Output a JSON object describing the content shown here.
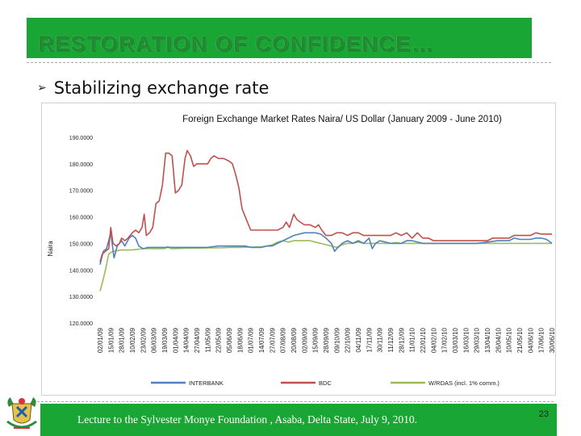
{
  "slide": {
    "title": "RESTORATION OF CONFIDENCE…",
    "bullet": "Stabilizing exchange rate",
    "footer": "Lecture to the Sylvester Monye Foundation , Asaba, Delta State, July 9, 2010.",
    "page_number": "23"
  },
  "colors": {
    "band": "#1aa635",
    "title_text": "#1f8a30",
    "interbank": "#4f81bd",
    "bdc": "#c0504d",
    "wrdas": "#9bbb59"
  },
  "chart_data": {
    "type": "line",
    "title": "Foreign Exchange Market Rates Naira/ US Dollar    (January 2009 - June 2010)",
    "ylabel": "Naira",
    "xlabel": "",
    "ylim": [
      120,
      190
    ],
    "yticks": [
      "190.0000",
      "180.0000",
      "170.0000",
      "160.0000",
      "150.0000",
      "140.0000",
      "130.0000",
      "120.0000"
    ],
    "x_tick_labels": [
      "02/01/09",
      "15/01/09",
      "28/01/09",
      "10/02/09",
      "23/02/09",
      "06/03/09",
      "19/03/09",
      "01/04/09",
      "14/04/09",
      "27/04/09",
      "11/05/09",
      "22/05/09",
      "05/06/09",
      "18/06/09",
      "01/07/09",
      "14/07/09",
      "27/07/09",
      "07/08/09",
      "20/08/09",
      "02/09/09",
      "15/09/09",
      "28/09/09",
      "09/10/09",
      "22/10/09",
      "04/11/09",
      "17/11/09",
      "30/11/09",
      "11/12/09",
      "28/12/09",
      "11/01/10",
      "22/01/10",
      "04/02/10",
      "17/02/10",
      "03/03/10",
      "16/03/10",
      "29/03/10",
      "13/04/10",
      "26/04/10",
      "10/05/10",
      "21/05/10",
      "04/06/10",
      "17/06/10",
      "30/06/10"
    ],
    "legend_position": "bottom",
    "grid": false,
    "series": [
      {
        "name": "INTERBANK",
        "color": "#4f81bd",
        "values": [
          [
            0,
            142
          ],
          [
            0.3,
            147
          ],
          [
            0.6,
            148
          ],
          [
            1,
            154
          ],
          [
            1.3,
            144.5
          ],
          [
            1.6,
            149
          ],
          [
            2,
            151
          ],
          [
            2.3,
            149
          ],
          [
            2.7,
            152
          ],
          [
            3,
            153
          ],
          [
            3.3,
            152
          ],
          [
            3.6,
            149
          ],
          [
            4,
            148
          ],
          [
            4.5,
            148.5
          ],
          [
            5,
            148.5
          ],
          [
            6,
            148.5
          ],
          [
            7,
            148.5
          ],
          [
            8,
            148.5
          ],
          [
            9,
            148.5
          ],
          [
            10,
            148.5
          ],
          [
            11,
            149
          ],
          [
            12,
            149
          ],
          [
            13,
            149
          ],
          [
            13.5,
            149
          ],
          [
            14,
            148.5
          ],
          [
            15,
            148.5
          ],
          [
            15.5,
            149
          ],
          [
            16,
            149
          ],
          [
            16.5,
            150
          ],
          [
            17,
            151
          ],
          [
            18,
            153
          ],
          [
            19,
            154
          ],
          [
            20,
            154
          ],
          [
            20.5,
            153.5
          ],
          [
            21,
            152
          ],
          [
            21.5,
            150
          ],
          [
            21.8,
            147
          ],
          [
            22,
            148
          ],
          [
            22.5,
            150
          ],
          [
            23,
            151
          ],
          [
            23.5,
            150
          ],
          [
            24,
            151
          ],
          [
            24.5,
            150
          ],
          [
            25,
            152
          ],
          [
            25.3,
            148
          ],
          [
            25.6,
            150
          ],
          [
            26,
            151
          ],
          [
            27,
            150
          ],
          [
            28,
            150
          ],
          [
            28.5,
            151
          ],
          [
            29,
            151
          ],
          [
            30,
            150
          ],
          [
            31,
            150
          ],
          [
            32,
            150
          ],
          [
            33,
            150
          ],
          [
            34,
            150
          ],
          [
            35,
            150
          ],
          [
            36,
            150.5
          ],
          [
            37,
            151
          ],
          [
            38,
            151
          ],
          [
            38.5,
            152
          ],
          [
            39,
            151.5
          ],
          [
            40,
            151.5
          ],
          [
            40.5,
            152
          ],
          [
            41,
            152
          ],
          [
            41.5,
            151.5
          ],
          [
            42,
            150
          ]
        ]
      },
      {
        "name": "BDC",
        "color": "#c0504d",
        "values": [
          [
            0,
            143
          ],
          [
            0.2,
            146
          ],
          [
            0.5,
            147
          ],
          [
            0.8,
            148
          ],
          [
            1,
            156
          ],
          [
            1.2,
            150
          ],
          [
            1.5,
            149
          ],
          [
            1.8,
            150
          ],
          [
            2,
            152
          ],
          [
            2.3,
            151
          ],
          [
            2.6,
            152
          ],
          [
            3,
            154
          ],
          [
            3.3,
            155
          ],
          [
            3.6,
            154
          ],
          [
            3.9,
            156
          ],
          [
            4.1,
            161
          ],
          [
            4.3,
            153
          ],
          [
            4.6,
            154
          ],
          [
            4.9,
            156
          ],
          [
            5.2,
            165
          ],
          [
            5.5,
            166
          ],
          [
            5.8,
            172
          ],
          [
            6.1,
            184
          ],
          [
            6.4,
            184
          ],
          [
            6.7,
            183
          ],
          [
            7,
            169
          ],
          [
            7.3,
            170
          ],
          [
            7.6,
            172
          ],
          [
            7.9,
            182
          ],
          [
            8.1,
            185
          ],
          [
            8.4,
            183
          ],
          [
            8.7,
            179
          ],
          [
            9,
            180
          ],
          [
            9.5,
            180
          ],
          [
            10,
            180
          ],
          [
            10.3,
            182
          ],
          [
            10.6,
            183
          ],
          [
            11,
            182
          ],
          [
            11.5,
            182
          ],
          [
            12,
            181
          ],
          [
            12.3,
            180
          ],
          [
            12.6,
            176
          ],
          [
            12.9,
            171
          ],
          [
            13.2,
            163
          ],
          [
            13.5,
            160
          ],
          [
            13.8,
            157
          ],
          [
            14,
            155
          ],
          [
            14.5,
            155
          ],
          [
            15,
            155
          ],
          [
            15.5,
            155
          ],
          [
            16,
            155
          ],
          [
            16.5,
            155
          ],
          [
            17,
            156
          ],
          [
            17.3,
            158
          ],
          [
            17.6,
            156
          ],
          [
            18,
            161
          ],
          [
            18.3,
            159
          ],
          [
            18.6,
            158
          ],
          [
            19,
            157
          ],
          [
            19.5,
            157
          ],
          [
            20,
            156
          ],
          [
            20.3,
            157
          ],
          [
            20.6,
            155
          ],
          [
            21,
            153
          ],
          [
            21.5,
            153
          ],
          [
            22,
            154
          ],
          [
            22.5,
            154
          ],
          [
            23,
            153
          ],
          [
            23.5,
            154
          ],
          [
            24,
            154
          ],
          [
            24.5,
            153
          ],
          [
            25,
            153
          ],
          [
            25.5,
            153
          ],
          [
            26,
            153
          ],
          [
            26.5,
            153
          ],
          [
            27,
            153
          ],
          [
            27.5,
            154
          ],
          [
            28,
            153
          ],
          [
            28.5,
            154
          ],
          [
            29,
            152
          ],
          [
            29.5,
            154
          ],
          [
            30,
            152
          ],
          [
            30.5,
            152
          ],
          [
            31,
            151
          ],
          [
            32,
            151
          ],
          [
            33,
            151
          ],
          [
            34,
            151
          ],
          [
            35,
            151
          ],
          [
            36,
            151
          ],
          [
            36.5,
            152
          ],
          [
            37,
            152
          ],
          [
            38,
            152
          ],
          [
            38.5,
            153
          ],
          [
            39,
            153
          ],
          [
            40,
            153
          ],
          [
            40.5,
            154
          ],
          [
            41,
            153.5
          ],
          [
            42,
            153.5
          ]
        ]
      },
      {
        "name": "W/RDAS (incl. 1% comm.)",
        "color": "#9bbb59",
        "values": [
          [
            0,
            132
          ],
          [
            0.2,
            135
          ],
          [
            0.5,
            140
          ],
          [
            0.8,
            146
          ],
          [
            1.2,
            147
          ],
          [
            2,
            147.5
          ],
          [
            3,
            147.5
          ],
          [
            4,
            148
          ],
          [
            5,
            148
          ],
          [
            6,
            148
          ],
          [
            6.3,
            148.8
          ],
          [
            6.6,
            148
          ],
          [
            7,
            148
          ],
          [
            8,
            148.2
          ],
          [
            9,
            148.2
          ],
          [
            10,
            148.3
          ],
          [
            11,
            148.3
          ],
          [
            12,
            148.5
          ],
          [
            13,
            148.5
          ],
          [
            14,
            148.6
          ],
          [
            15,
            148.7
          ],
          [
            15.5,
            149
          ],
          [
            16,
            149.5
          ],
          [
            16.5,
            150.5
          ],
          [
            17,
            151
          ],
          [
            17.5,
            150.5
          ],
          [
            18,
            151
          ],
          [
            18.5,
            151
          ],
          [
            19,
            151
          ],
          [
            19.5,
            151
          ],
          [
            20,
            150.5
          ],
          [
            20.5,
            150
          ],
          [
            21,
            149.5
          ],
          [
            21.5,
            149
          ],
          [
            22,
            148.5
          ],
          [
            22.5,
            149.5
          ],
          [
            23,
            150
          ],
          [
            23.5,
            150
          ],
          [
            24,
            150.5
          ],
          [
            24.5,
            150
          ],
          [
            25,
            150
          ],
          [
            26,
            150
          ],
          [
            27,
            150
          ],
          [
            27.5,
            150.3
          ],
          [
            28,
            150
          ],
          [
            29,
            150
          ],
          [
            30,
            150
          ],
          [
            31,
            150
          ],
          [
            32,
            150
          ],
          [
            33,
            150
          ],
          [
            34,
            150
          ],
          [
            35,
            150
          ],
          [
            36,
            150
          ],
          [
            37,
            150
          ],
          [
            38,
            150
          ],
          [
            39,
            150
          ],
          [
            40,
            150
          ],
          [
            41,
            150
          ],
          [
            42,
            150
          ]
        ]
      }
    ]
  }
}
